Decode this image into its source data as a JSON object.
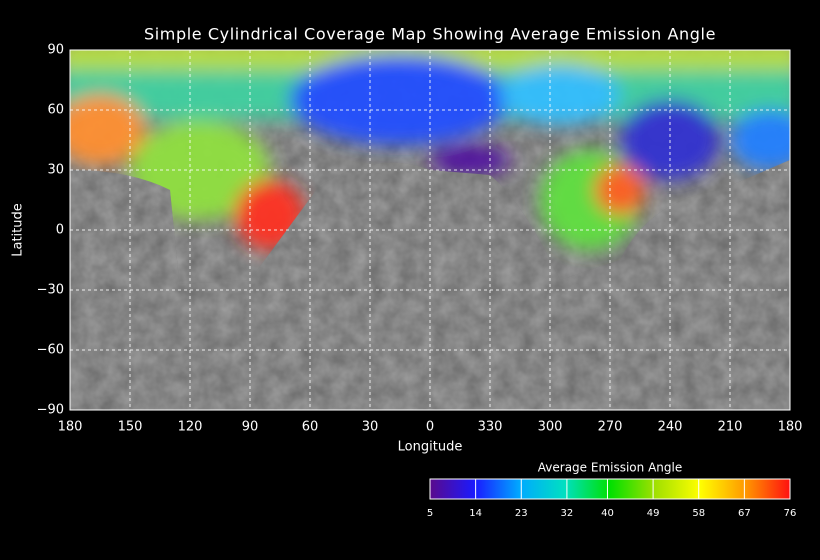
{
  "title": "Simple Cylindrical Coverage Map Showing Average Emission Angle",
  "map": {
    "x_label": "Longitude",
    "y_label": "Latitude",
    "lat_range": [
      -90,
      90
    ],
    "lat_ticks": [
      90,
      60,
      30,
      0,
      {
        "value": -30,
        "label": "−30"
      },
      {
        "value": -60,
        "label": "−60"
      },
      {
        "value": -90,
        "label": "−90"
      }
    ],
    "lon_ticks": [
      180,
      150,
      120,
      90,
      60,
      30,
      0,
      330,
      300,
      270,
      240,
      210,
      180
    ]
  },
  "colorbar": {
    "title": "Average Emission Angle",
    "range": [
      5,
      76
    ],
    "ticks": [
      5,
      14,
      23,
      32,
      40,
      49,
      58,
      67,
      76
    ],
    "colors": [
      "#5a0a8c",
      "#1a1aff",
      "#00aaff",
      "#00e0c0",
      "#00e000",
      "#a0e000",
      "#ffff00",
      "#ff9900",
      "#ff1010"
    ]
  }
}
